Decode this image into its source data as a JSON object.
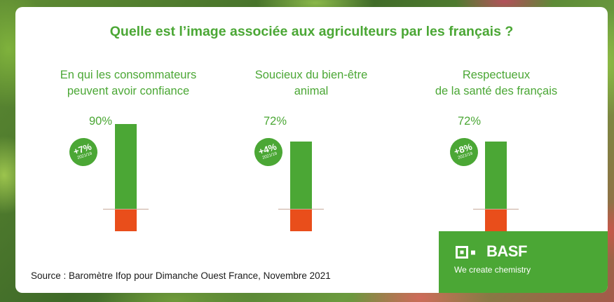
{
  "title": "Quelle est l’image associée aux agriculteurs par les français ?",
  "source": "Source : Baromètre Ifop pour Dimanche Ouest France, Novembre 2021",
  "brand": {
    "name": "BASF",
    "tagline": "We create chemistry",
    "color": "#4ba735"
  },
  "chart_data": [
    {
      "type": "bar",
      "title_lines": [
        "En qui les consommateurs",
        "peuvent avoir confiance"
      ],
      "value_label": "90%",
      "values": {
        "positive": 90,
        "negative": 10
      },
      "change": "+7%",
      "change_note": "2021/19",
      "colors": {
        "positive": "#4ba735",
        "negative": "#e94e1b"
      }
    },
    {
      "type": "bar",
      "title_lines": [
        "Soucieux du bien-être",
        "animal"
      ],
      "value_label": "72%",
      "values": {
        "positive": 72,
        "negative": 28
      },
      "change": "+4%",
      "change_note": "2021/19",
      "colors": {
        "positive": "#4ba735",
        "negative": "#e94e1b"
      }
    },
    {
      "type": "bar",
      "title_lines": [
        "Respectueux",
        "de la santé des français"
      ],
      "value_label": "72%",
      "values": {
        "positive": 72,
        "negative": 28
      },
      "change": "+8%",
      "change_note": "2021/19",
      "colors": {
        "positive": "#4ba735",
        "negative": "#e94e1b"
      }
    }
  ]
}
